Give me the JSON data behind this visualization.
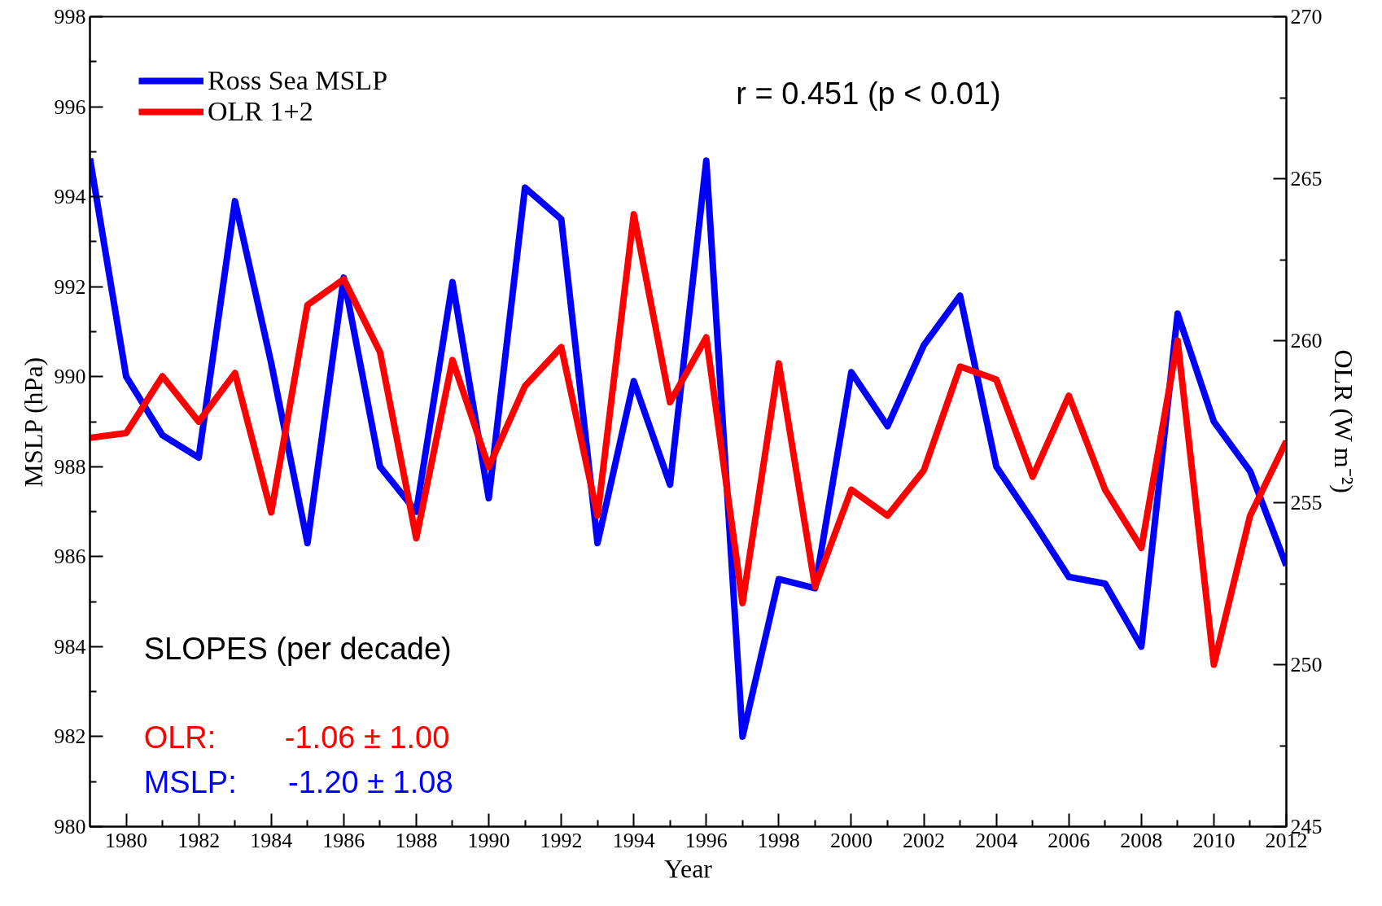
{
  "chart_data": {
    "type": "line",
    "xlabel": "Year",
    "ylabel": "MSLP (hPa)",
    "y2label": "OLR (W m⁻²)",
    "x": [
      1979,
      1980,
      1981,
      1982,
      1983,
      1984,
      1985,
      1986,
      1987,
      1988,
      1989,
      1990,
      1991,
      1992,
      1993,
      1994,
      1995,
      1996,
      1997,
      1998,
      1999,
      2000,
      2001,
      2002,
      2003,
      2004,
      2005,
      2006,
      2007,
      2008,
      2009,
      2010,
      2011,
      2012
    ],
    "series": [
      {
        "name": "Ross Sea MSLP",
        "color": "#0000ff",
        "values": [
          994.85,
          990.0,
          988.7,
          988.2,
          993.9,
          990.3,
          986.3,
          992.2,
          988.0,
          987.0,
          992.1,
          987.3,
          994.2,
          993.5,
          986.3,
          989.9,
          987.6,
          994.8,
          982.0,
          985.5,
          985.3,
          990.1,
          988.9,
          990.7,
          991.8,
          988.0,
          986.8,
          985.55,
          985.4,
          984.0,
          991.4,
          989.0,
          987.9,
          985.8
        ]
      },
      {
        "name": "OLR 1+2",
        "color": "#ff0000",
        "axis": "y2",
        "values": [
          257.0,
          257.15,
          258.9,
          257.5,
          259.0,
          254.7,
          261.1,
          261.9,
          259.65,
          253.9,
          259.4,
          256.1,
          258.6,
          259.8,
          254.6,
          263.9,
          258.1,
          260.1,
          251.9,
          259.3,
          252.4,
          255.4,
          254.6,
          256.0,
          259.2,
          258.8,
          255.8,
          258.3,
          255.4,
          253.6,
          260.0,
          250.0,
          254.6,
          256.9
        ]
      }
    ],
    "xlim": [
      1979,
      2012
    ],
    "xticks": [
      1980,
      1982,
      1984,
      1986,
      1988,
      1990,
      1992,
      1994,
      1996,
      1998,
      2000,
      2002,
      2004,
      2006,
      2008,
      2010,
      2012
    ],
    "ylim": [
      980,
      998
    ],
    "yticks": [
      980,
      982,
      984,
      986,
      988,
      990,
      992,
      994,
      996,
      998
    ],
    "y2lim": [
      245,
      270
    ],
    "y2ticks": [
      245,
      250,
      255,
      260,
      265,
      270
    ],
    "annotations": [
      "r = 0.451 (p < 0.01)",
      "SLOPES (per decade)",
      "OLR:        -1.06 ± 1.00",
      "MSLP:      -1.20 ± 1.08"
    ],
    "legend": "top left",
    "grid": false,
    "line_style": "solid",
    "marker": "none"
  }
}
